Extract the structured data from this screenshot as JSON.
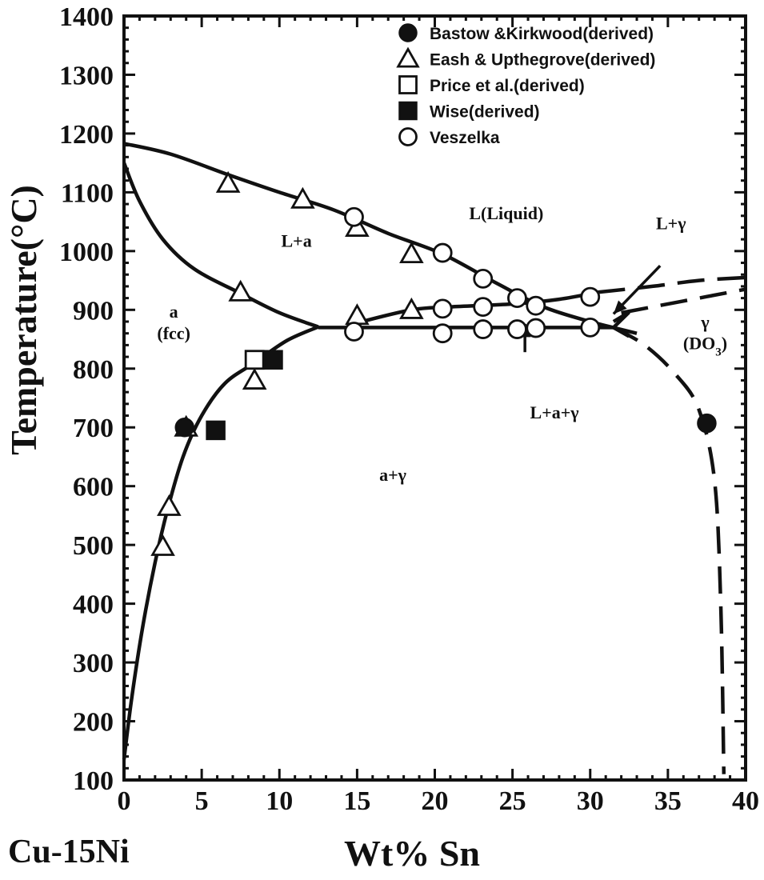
{
  "chart_data": {
    "type": "scatter",
    "title": "",
    "xlabel": "Wt% Sn",
    "ylabel": "Temperature(°C)",
    "corner_label": "Cu-15Ni",
    "xlim": [
      0,
      40
    ],
    "ylim": [
      100,
      1400
    ],
    "x_ticks": [
      "0",
      "5",
      "10",
      "15",
      "20",
      "25",
      "30",
      "35",
      "40"
    ],
    "y_ticks": [
      "100",
      "200",
      "300",
      "400",
      "500",
      "600",
      "700",
      "800",
      "900",
      "1000",
      "1100",
      "1200",
      "1300",
      "1400"
    ],
    "legend_position": "top-right",
    "series": [
      {
        "name": "Bastow &Kirkwood(derived)",
        "marker": "filled-circle",
        "points": [
          [
            3.9,
            700
          ],
          [
            37.5,
            707
          ]
        ]
      },
      {
        "name": "Eash & Upthegrove(derived)",
        "marker": "open-triangle",
        "points": [
          [
            6.7,
            1115
          ],
          [
            11.5,
            1088
          ],
          [
            15.0,
            1040
          ],
          [
            18.5,
            995
          ],
          [
            7.5,
            930
          ],
          [
            15.0,
            890
          ],
          [
            18.5,
            900
          ],
          [
            8.4,
            780
          ],
          [
            4.0,
            700
          ],
          [
            2.9,
            565
          ],
          [
            2.5,
            497
          ]
        ]
      },
      {
        "name": "Price et al.(derived)",
        "marker": "open-square",
        "points": [
          [
            8.4,
            815
          ]
        ]
      },
      {
        "name": "Wise(derived)",
        "marker": "filled-square",
        "points": [
          [
            9.6,
            815
          ],
          [
            5.9,
            695
          ]
        ]
      },
      {
        "name": "Veszelka",
        "marker": "open-circle",
        "points": [
          [
            14.8,
            1058
          ],
          [
            20.5,
            997
          ],
          [
            23.1,
            953
          ],
          [
            25.3,
            920
          ],
          [
            26.5,
            907
          ],
          [
            30.0,
            922
          ],
          [
            20.5,
            902
          ],
          [
            23.1,
            905
          ],
          [
            14.8,
            863
          ],
          [
            20.5,
            860
          ],
          [
            23.1,
            867
          ],
          [
            25.3,
            867
          ],
          [
            26.5,
            869
          ],
          [
            30.0,
            870
          ]
        ]
      }
    ],
    "curves": [
      {
        "name": "liquidus",
        "style": "solid",
        "points": [
          [
            0,
            1183
          ],
          [
            3,
            1165
          ],
          [
            6.7,
            1130
          ],
          [
            10,
            1100
          ],
          [
            13.5,
            1070
          ],
          [
            17,
            1030
          ],
          [
            20.5,
            995
          ],
          [
            24,
            945
          ],
          [
            27,
            905
          ],
          [
            30,
            880
          ],
          [
            33,
            860
          ]
        ]
      },
      {
        "name": "alpha solidus",
        "style": "solid",
        "points": [
          [
            0,
            1150
          ],
          [
            1,
            1085
          ],
          [
            2.5,
            1020
          ],
          [
            4.5,
            970
          ],
          [
            7.5,
            928
          ],
          [
            10,
            895
          ],
          [
            12.5,
            871
          ]
        ]
      },
      {
        "name": "alpha solvus",
        "style": "solid",
        "points": [
          [
            0,
            135
          ],
          [
            0.5,
            240
          ],
          [
            1.2,
            360
          ],
          [
            2,
            470
          ],
          [
            2.8,
            560
          ],
          [
            3.8,
            650
          ],
          [
            5,
            720
          ],
          [
            6.5,
            775
          ],
          [
            8.4,
            810
          ],
          [
            10.5,
            848
          ],
          [
            12.5,
            871
          ]
        ]
      },
      {
        "name": "eutectic isotherm",
        "style": "solid",
        "points": [
          [
            12.5,
            870
          ],
          [
            31.5,
            870
          ]
        ]
      },
      {
        "name": "gamma liquidus",
        "style": "solid",
        "points": [
          [
            15,
            878
          ],
          [
            18.5,
            900
          ],
          [
            21,
            905
          ],
          [
            25,
            910
          ],
          [
            28,
            918
          ],
          [
            30.5,
            930
          ]
        ]
      },
      {
        "name": "gamma liquidus upper",
        "style": "dashed",
        "points": [
          [
            30.5,
            930
          ],
          [
            34,
            940
          ],
          [
            37,
            950
          ],
          [
            40,
            955
          ]
        ]
      },
      {
        "name": "gamma boundary upper",
        "style": "dashed",
        "points": [
          [
            32,
            895
          ],
          [
            36,
            915
          ],
          [
            40,
            935
          ]
        ]
      },
      {
        "name": "gamma solidus",
        "style": "dashed",
        "points": [
          [
            31.5,
            870
          ],
          [
            33.5,
            840
          ],
          [
            35.5,
            790
          ],
          [
            37,
            730
          ],
          [
            38,
            610
          ],
          [
            38.4,
            400
          ],
          [
            38.6,
            110
          ]
        ]
      }
    ],
    "wedge": [
      [
        31.5,
        880
      ],
      [
        32.5,
        896
      ],
      [
        31.5,
        870
      ],
      [
        32.5,
        855
      ]
    ],
    "arrows": [
      {
        "from": [
          34.5,
          975
        ],
        "to": [
          31.5,
          893
        ]
      },
      {
        "from": [
          25.8,
          828
        ],
        "to": [
          25.8,
          876
        ]
      }
    ],
    "annotations": [
      {
        "text": "L(Liquid)",
        "x": 24.6,
        "y": 1054
      },
      {
        "text": "L+a",
        "x": 11.1,
        "y": 1007
      },
      {
        "text": "a",
        "x": 3.2,
        "y": 887
      },
      {
        "text": "(fcc)",
        "x": 3.2,
        "y": 850
      },
      {
        "text": "L+γ",
        "x": 35.2,
        "y": 1037
      },
      {
        "text": "γ",
        "x": 37.4,
        "y": 869
      },
      {
        "text": "(DO3)",
        "x": 37.4,
        "y": 833
      },
      {
        "text": "L+a+γ",
        "x": 27.7,
        "y": 715
      },
      {
        "text": "a+γ",
        "x": 17.3,
        "y": 609
      }
    ]
  }
}
